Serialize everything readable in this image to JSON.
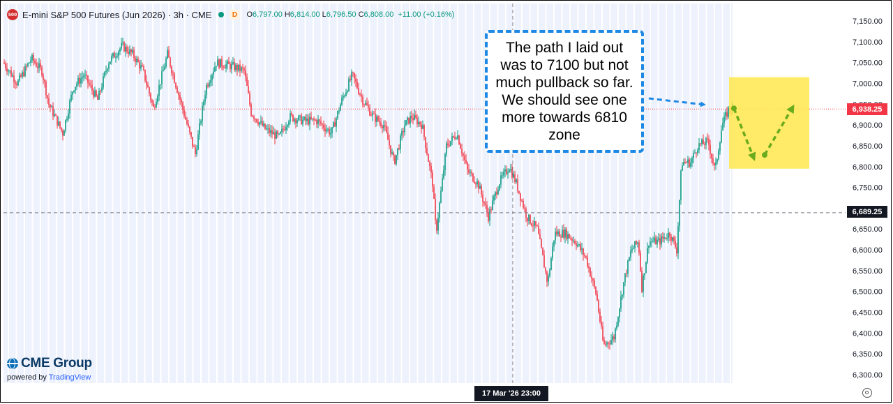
{
  "header": {
    "symbol_badge": "500",
    "title": "E-mini S&P 500 Futures (Jun 2026) · 3h · CME",
    "status_dot_color": "#089981",
    "delayed_marker": "D",
    "open_key": "O",
    "open": "6,797.00",
    "high_key": "H",
    "high": "6,814.00",
    "low_key": "L",
    "low": "6,796.50",
    "close_key": "C",
    "close": "6,808.00",
    "change": "+11.00 (+0.16%)"
  },
  "annotation": {
    "text": "The path I laid out was to 7100 but not much pullback so far. We should see one more towards 6810 zone",
    "border_color": "#1e88e5"
  },
  "price_tags": {
    "current": "6,938.25",
    "current_color": "#f23645",
    "crosshair": "6,689.25"
  },
  "time_tag": "17 Mar '26   23:00",
  "brand": {
    "name": "CME Group",
    "powered_prefix": "powered by",
    "powered_name": "TradingView"
  },
  "chart_data": {
    "type": "candlestick",
    "title": "E-mini S&P 500 Futures (Jun 2026) · 3h · CME",
    "ylim": [
      6280,
      7165
    ],
    "y_ticks": [
      7150,
      7100,
      7050,
      7000,
      6950,
      6900,
      6850,
      6800,
      6750,
      6700,
      6650,
      6600,
      6550,
      6500,
      6450,
      6400,
      6350,
      6300
    ],
    "y_tick_labels": [
      "7,150.00",
      "7,100.00",
      "7,050.00",
      "7,000.00",
      "6,950.00",
      "6,900.00",
      "6,850.00",
      "6,800.00",
      "6,750.00",
      "6,700.00",
      "6,650.00",
      "6,600.00",
      "6,550.00",
      "6,500.00",
      "6,450.00",
      "6,400.00",
      "6,350.00",
      "6,300.00"
    ],
    "up_color": "#089981",
    "down_color": "#f23645",
    "price_path": [
      [
        0,
        7050
      ],
      [
        20,
        7000
      ],
      [
        40,
        7060
      ],
      [
        55,
        7030
      ],
      [
        65,
        6950
      ],
      [
        85,
        6880
      ],
      [
        100,
        6990
      ],
      [
        115,
        7020
      ],
      [
        135,
        6960
      ],
      [
        150,
        7050
      ],
      [
        170,
        7090
      ],
      [
        185,
        7070
      ],
      [
        200,
        7030
      ],
      [
        215,
        6940
      ],
      [
        235,
        7070
      ],
      [
        255,
        6950
      ],
      [
        275,
        6830
      ],
      [
        290,
        6990
      ],
      [
        305,
        7050
      ],
      [
        330,
        7040
      ],
      [
        345,
        7030
      ],
      [
        355,
        6930
      ],
      [
        375,
        6890
      ],
      [
        395,
        6870
      ],
      [
        410,
        6920
      ],
      [
        430,
        6910
      ],
      [
        450,
        6910
      ],
      [
        470,
        6880
      ],
      [
        485,
        6960
      ],
      [
        500,
        7020
      ],
      [
        515,
        6960
      ],
      [
        530,
        6920
      ],
      [
        545,
        6900
      ],
      [
        560,
        6810
      ],
      [
        575,
        6900
      ],
      [
        585,
        6920
      ],
      [
        600,
        6900
      ],
      [
        615,
        6760
      ],
      [
        620,
        6640
      ],
      [
        635,
        6850
      ],
      [
        650,
        6880
      ],
      [
        665,
        6790
      ],
      [
        680,
        6760
      ],
      [
        695,
        6680
      ],
      [
        710,
        6760
      ],
      [
        725,
        6800
      ],
      [
        735,
        6760
      ],
      [
        750,
        6680
      ],
      [
        765,
        6650
      ],
      [
        780,
        6520
      ],
      [
        790,
        6640
      ],
      [
        805,
        6640
      ],
      [
        820,
        6620
      ],
      [
        835,
        6580
      ],
      [
        850,
        6490
      ],
      [
        860,
        6370
      ],
      [
        875,
        6390
      ],
      [
        890,
        6530
      ],
      [
        900,
        6600
      ],
      [
        910,
        6620
      ],
      [
        915,
        6510
      ],
      [
        925,
        6620
      ],
      [
        940,
        6620
      ],
      [
        955,
        6640
      ],
      [
        965,
        6600
      ],
      [
        972,
        6810
      ],
      [
        985,
        6810
      ],
      [
        995,
        6850
      ],
      [
        1010,
        6860
      ],
      [
        1020,
        6790
      ],
      [
        1030,
        6900
      ],
      [
        1040,
        6940
      ],
      [
        1045,
        6945
      ]
    ],
    "shaded_x_range": [
      0,
      1045
    ],
    "current_price_line": 6938.25,
    "crosshair_price": 6689.25,
    "crosshair_time": "17 Mar '26   23:00",
    "projection": {
      "zone_price_range": [
        6795,
        7015
      ],
      "zone_color": "#ffe74d",
      "path_prices": [
        6940,
        6818,
        6828,
        6945
      ],
      "path_color": "#6aab1e"
    },
    "annotation_arrow_color": "#1e88e5"
  }
}
